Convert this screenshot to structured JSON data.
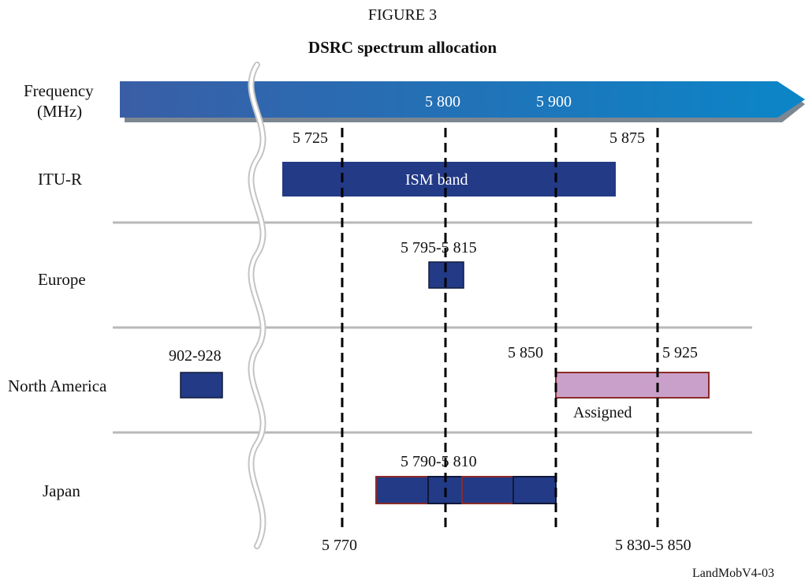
{
  "figure": {
    "label": "FIGURE 3",
    "title": "DSRC spectrum allocation"
  },
  "axis": {
    "label_line1": "Frequency",
    "label_line2": "(MHz)",
    "ticks": [
      "5 800",
      "5 900"
    ]
  },
  "rows": {
    "itu": "ITU-R",
    "europe": "Europe",
    "north_america": "North America",
    "japan": "Japan"
  },
  "markers": {
    "m5725": "5 725",
    "m5875": "5 875",
    "m5770": "5 770",
    "m5830_5850": "5 830-5 850",
    "m5850": "5 850",
    "m5925": "5 925"
  },
  "bands": {
    "ism": "ISM band",
    "europe_range": "5 795-5 815",
    "na_low": "902-928",
    "assigned": "Assigned",
    "japan_range": "5 790-5 810"
  },
  "footer": "LandMobV4-03",
  "colors": {
    "band_fill": "#233a86",
    "assigned_fill": "#c9a0c9",
    "assigned_border": "#8c2a2a",
    "arrow_start": "#3a5ea6",
    "arrow_end": "#0a86c8",
    "divider": "#b8b8b8"
  }
}
